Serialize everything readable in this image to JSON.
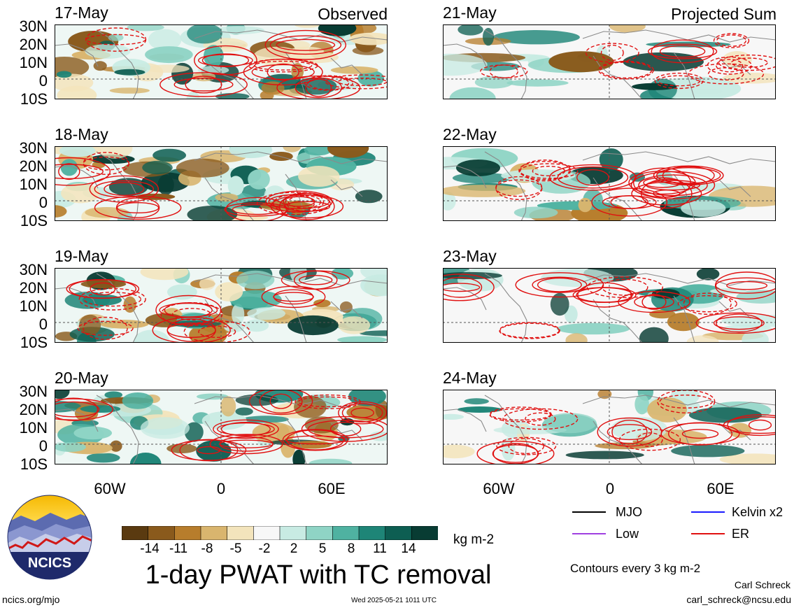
{
  "panels": {
    "left": [
      {
        "date": "17-May",
        "tag": "Observed"
      },
      {
        "date": "18-May",
        "tag": ""
      },
      {
        "date": "19-May",
        "tag": ""
      },
      {
        "date": "20-May",
        "tag": ""
      }
    ],
    "right": [
      {
        "date": "21-May",
        "tag": "Projected Sum"
      },
      {
        "date": "22-May",
        "tag": ""
      },
      {
        "date": "23-May",
        "tag": ""
      },
      {
        "date": "24-May",
        "tag": ""
      }
    ]
  },
  "axes": {
    "lat_ticks": [
      "30N",
      "20N",
      "10N",
      "0",
      "10S"
    ],
    "lon_ticks": [
      "60W",
      "0",
      "60E"
    ]
  },
  "colorbar": {
    "labels": [
      "-14",
      "-11",
      "-8",
      "-5",
      "-2",
      "2",
      "5",
      "8",
      "11",
      "14"
    ],
    "colors": [
      "#5a3a10",
      "#8a5a1c",
      "#b77d2c",
      "#d9b56e",
      "#f3e4bc",
      "#f7f7f7",
      "#c8ebe3",
      "#8fd4c5",
      "#4fb2a1",
      "#1e8577",
      "#0d5e52",
      "#083c33"
    ],
    "unit": "kg m-2"
  },
  "title": "1-day PWAT with TC removal",
  "legend": {
    "items": [
      {
        "label": "MJO",
        "color": "#000000"
      },
      {
        "label": "Kelvin x2",
        "color": "#1a1aff"
      },
      {
        "label": "Low",
        "color": "#a040e0"
      },
      {
        "label": "ER",
        "color": "#e01010"
      }
    ],
    "contour_note": "Contours every 3 kg m-2"
  },
  "footer": {
    "logo_text": "NCICS",
    "site": "ncics.org/mjo",
    "timestamp": "Wed 2025-05-21 1011 UTC",
    "author": "Carl Schreck",
    "email": "carl_schreck@ncsu.edu"
  }
}
